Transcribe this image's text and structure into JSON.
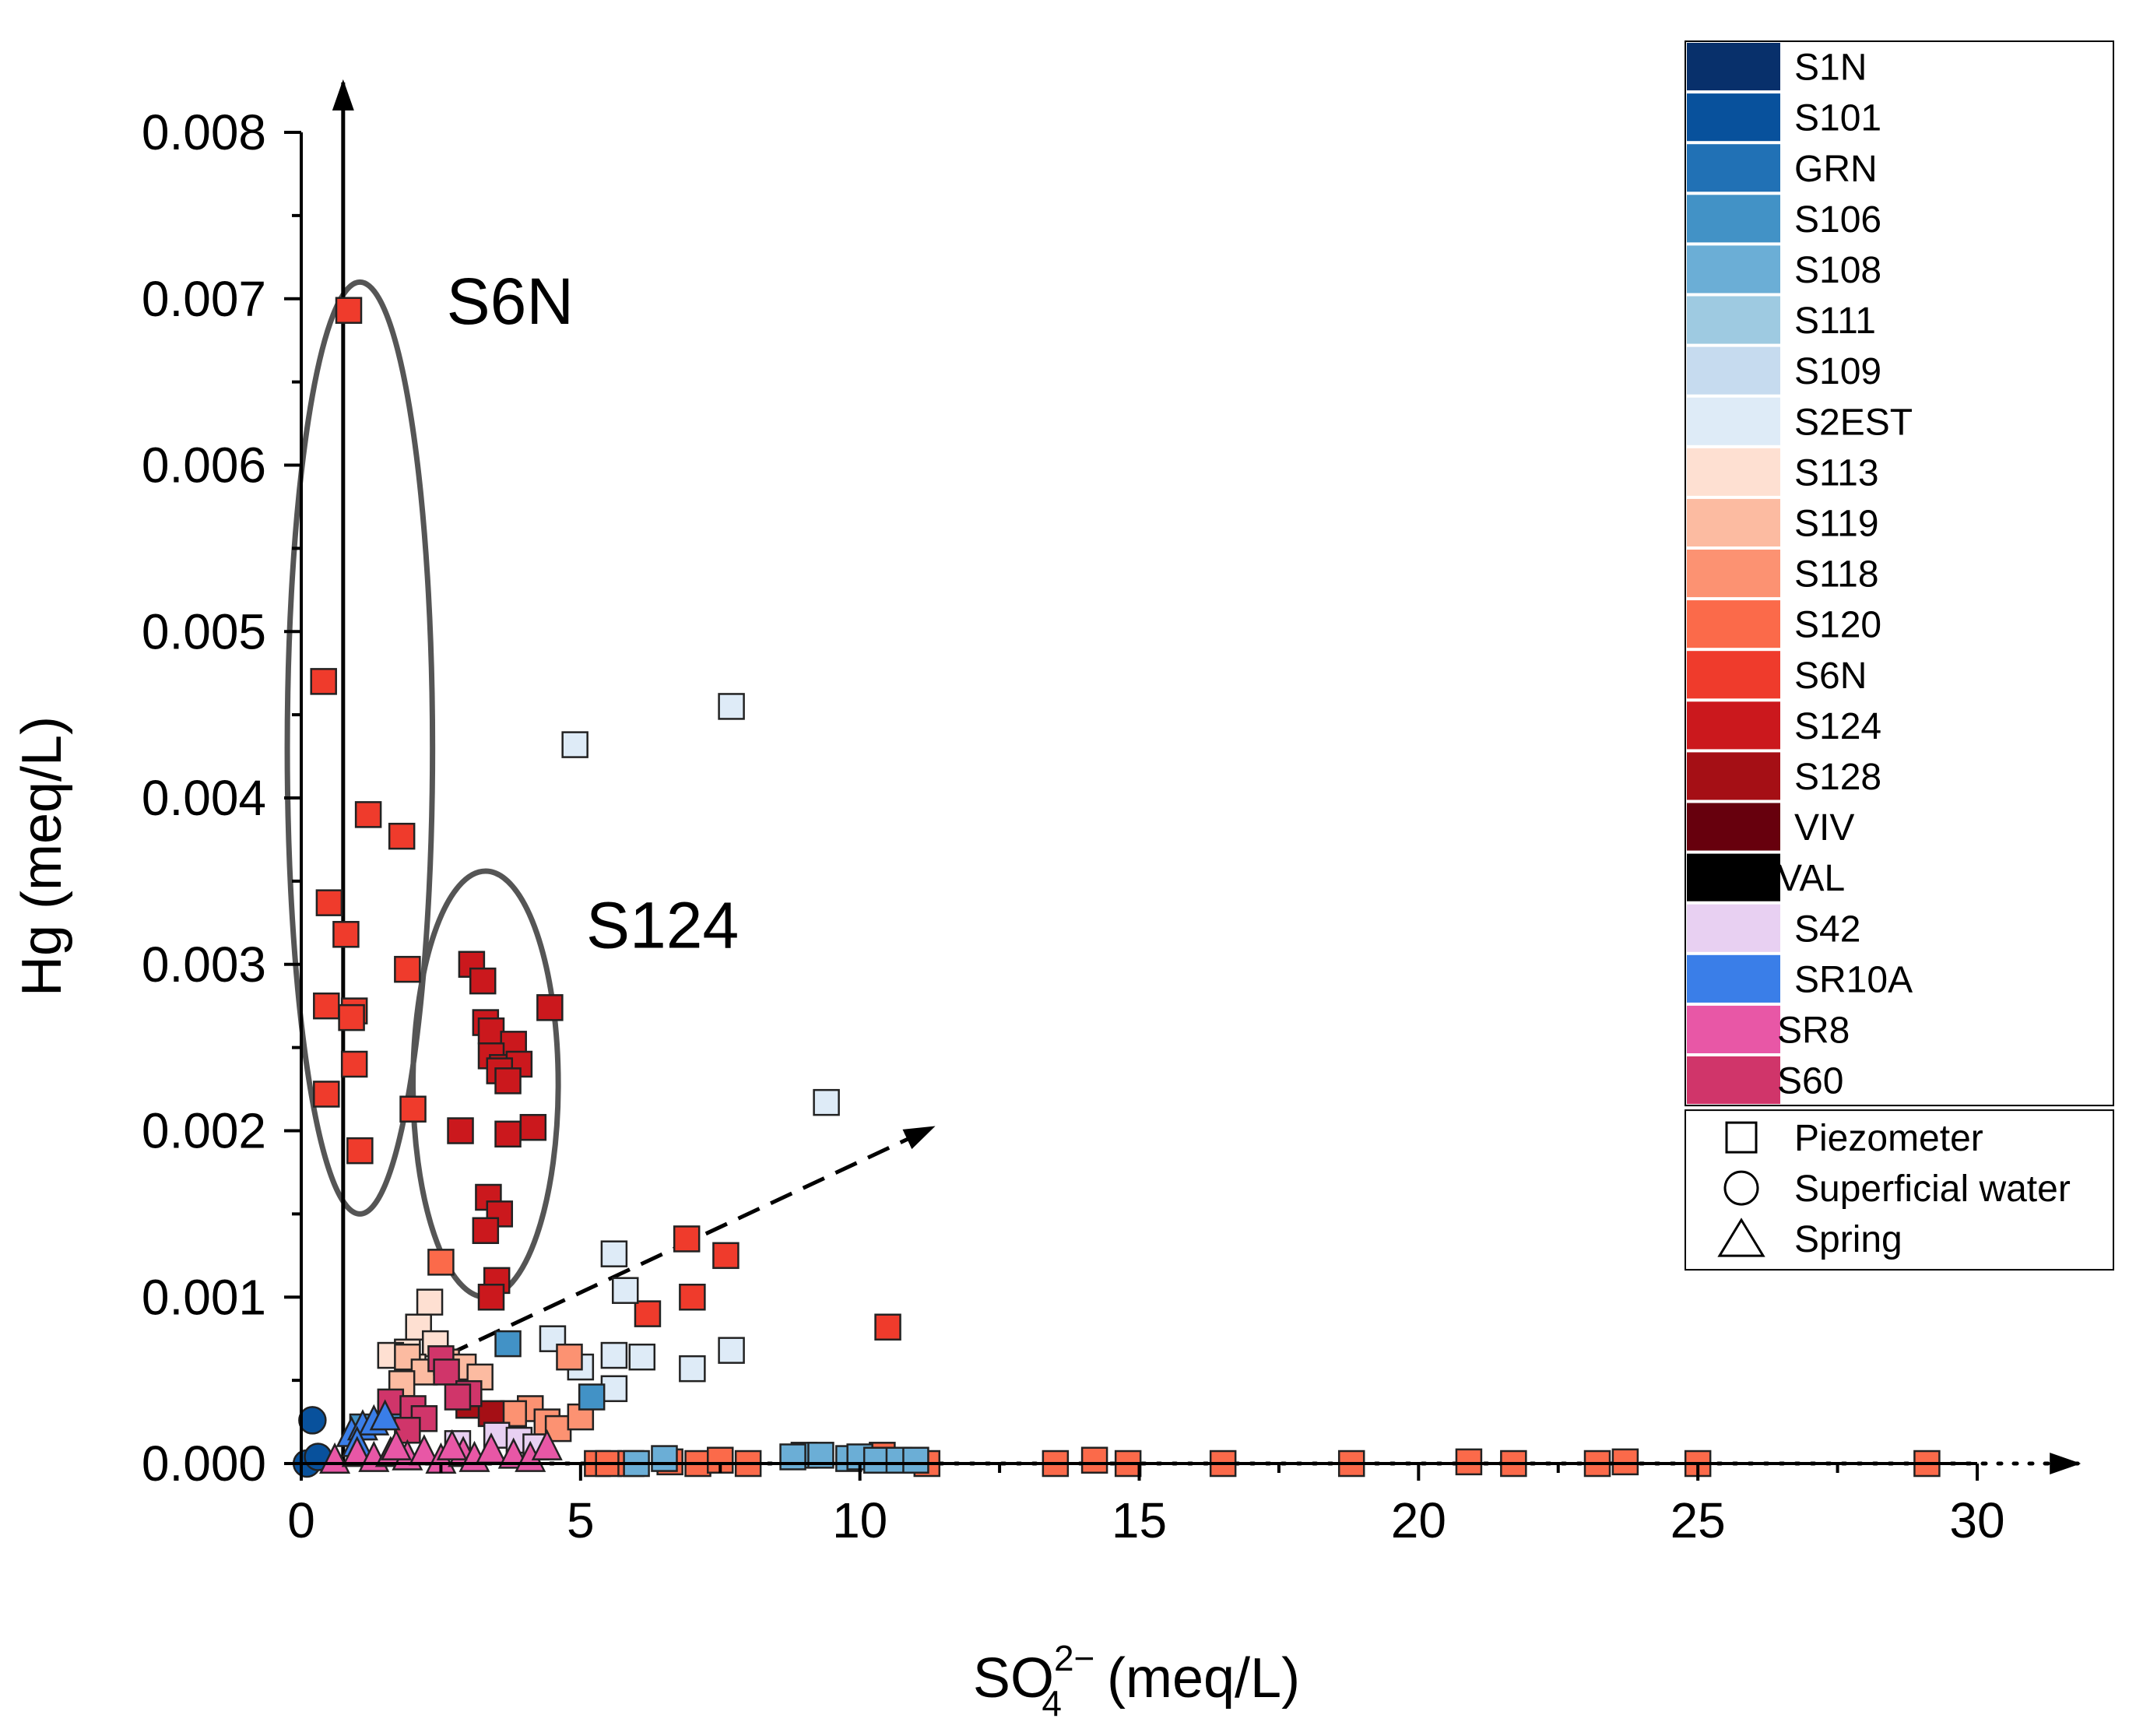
{
  "chart_data": {
    "type": "scatter",
    "title": "",
    "xlabel": {
      "base": "SO",
      "sub": "4",
      "sup": "2−",
      "unit": "(meq/L)"
    },
    "ylabel": "Hg (meq/L)",
    "xlim": [
      0,
      30
    ],
    "ylim": [
      0,
      0.008
    ],
    "x_ticks": [
      0,
      5,
      10,
      15,
      20,
      25,
      30
    ],
    "x_tick_labels": [
      "0",
      "5",
      "10",
      "15",
      "20",
      "25",
      "30"
    ],
    "y_ticks": [
      0,
      0.001,
      0.002,
      0.003,
      0.004,
      0.005,
      0.006,
      0.007,
      0.008
    ],
    "y_tick_labels": [
      "0.000",
      "0.001",
      "0.002",
      "0.003",
      "0.004",
      "0.005",
      "0.006",
      "0.007",
      "0.008"
    ],
    "annotations": [
      {
        "text": "S6N",
        "x": 2.6,
        "y": 0.00685
      },
      {
        "text": "S124",
        "x": 5.1,
        "y": 0.0031
      }
    ],
    "ellipses": [
      {
        "group": "S6N",
        "cx": 1.05,
        "cy": 0.0043,
        "rx": 1.3,
        "ry": 0.0028
      },
      {
        "group": "S124",
        "cx": 3.3,
        "cy": 0.00228,
        "rx": 1.3,
        "ry": 0.00128
      }
    ],
    "arrows": [
      {
        "style": "solid",
        "from": [
          0.75,
          0
        ],
        "to": [
          0.75,
          0.0083
        ]
      },
      {
        "style": "dotted",
        "from": [
          0,
          0
        ],
        "to": [
          31.8,
          0
        ]
      },
      {
        "style": "dashed",
        "from": [
          2.6,
          0.00065
        ],
        "to": [
          11.3,
          0.00202
        ]
      }
    ],
    "legend_sites": [
      {
        "name": "S1N",
        "color": "#08306b"
      },
      {
        "name": "S101",
        "color": "#08519c"
      },
      {
        "name": "GRN",
        "color": "#2171b5"
      },
      {
        "name": "S106",
        "color": "#4292c6"
      },
      {
        "name": "S108",
        "color": "#6baed6"
      },
      {
        "name": "S111",
        "color": "#9ecae1"
      },
      {
        "name": "S109",
        "color": "#c6dbef"
      },
      {
        "name": "S2EST",
        "color": "#deebf7"
      },
      {
        "name": "S113",
        "color": "#fee0d2"
      },
      {
        "name": "S119",
        "color": "#fcbba1"
      },
      {
        "name": "S118",
        "color": "#fc9272"
      },
      {
        "name": "S120",
        "color": "#fb6a4a"
      },
      {
        "name": "S6N",
        "color": "#ef3b2c"
      },
      {
        "name": "S124",
        "color": "#cb181d"
      },
      {
        "name": "S128",
        "color": "#a50f15"
      },
      {
        "name": "VIV",
        "color": "#67000d"
      },
      {
        "name": "VAL",
        "color": "#000000"
      },
      {
        "name": "S42",
        "color": "#e8d0f2"
      },
      {
        "name": "SR10A",
        "color": "#3a7ee8"
      },
      {
        "name": "SR8",
        "color": "#e857a6"
      },
      {
        "name": "S60",
        "color": "#d0356a"
      }
    ],
    "legend_shapes": [
      {
        "name": "Piezometer",
        "shape": "square"
      },
      {
        "name": "Superficial water",
        "shape": "circle"
      },
      {
        "name": "Spring",
        "shape": "triangle"
      }
    ],
    "series": [
      {
        "name": "S6N",
        "marker": "square",
        "color": "#ef3b2c",
        "points": [
          [
            0.85,
            0.00693
          ],
          [
            0.4,
            0.0047
          ],
          [
            1.2,
            0.0039
          ],
          [
            1.8,
            0.00377
          ],
          [
            0.5,
            0.00337
          ],
          [
            0.8,
            0.00318
          ],
          [
            1.9,
            0.00297
          ],
          [
            0.45,
            0.00275
          ],
          [
            0.95,
            0.00272
          ],
          [
            0.9,
            0.00268
          ],
          [
            0.95,
            0.0024
          ],
          [
            0.45,
            0.00222
          ],
          [
            2.0,
            0.00213
          ],
          [
            1.05,
            0.00188
          ],
          [
            6.9,
            0.00135
          ],
          [
            7.6,
            0.00125
          ],
          [
            7.0,
            0.001
          ],
          [
            6.2,
            0.0009
          ],
          [
            10.5,
            0.00082
          ]
        ]
      },
      {
        "name": "S124",
        "marker": "square",
        "color": "#cb181d",
        "points": [
          [
            3.05,
            0.003
          ],
          [
            3.25,
            0.0029
          ],
          [
            4.45,
            0.00274
          ],
          [
            3.3,
            0.00265
          ],
          [
            3.4,
            0.0026
          ],
          [
            3.8,
            0.00252
          ],
          [
            3.4,
            0.00245
          ],
          [
            3.6,
            0.00238
          ],
          [
            3.9,
            0.0024
          ],
          [
            3.55,
            0.00236
          ],
          [
            3.7,
            0.0023
          ],
          [
            2.85,
            0.002
          ],
          [
            3.7,
            0.00198
          ],
          [
            4.15,
            0.00202
          ],
          [
            3.35,
            0.0016
          ],
          [
            3.55,
            0.0015
          ],
          [
            3.3,
            0.0014
          ],
          [
            3.5,
            0.0011
          ],
          [
            3.4,
            0.001
          ]
        ]
      },
      {
        "name": "S120",
        "marker": "square",
        "color": "#fb6a4a",
        "points": [
          [
            2.5,
            0.00121
          ],
          [
            5.3,
            0.0
          ],
          [
            5.5,
            0.0
          ],
          [
            5.9,
            0.0
          ],
          [
            6.6,
            1e-05
          ],
          [
            7.1,
            0.0
          ],
          [
            7.5,
            2e-05
          ],
          [
            8.0,
            0.0
          ],
          [
            10.4,
            5e-05
          ],
          [
            11.2,
            0.0
          ],
          [
            13.5,
            0.0
          ],
          [
            14.2,
            2e-05
          ],
          [
            14.8,
            0.0
          ],
          [
            16.5,
            0.0
          ],
          [
            18.8,
            0.0
          ],
          [
            20.9,
            1e-05
          ],
          [
            21.7,
            0.0
          ],
          [
            23.2,
            0.0
          ],
          [
            23.7,
            1e-05
          ],
          [
            25.0,
            0.0
          ],
          [
            29.1,
            0.0
          ]
        ]
      },
      {
        "name": "S2EST",
        "marker": "square",
        "color": "#deebf7",
        "points": [
          [
            7.7,
            0.00455
          ],
          [
            4.9,
            0.00432
          ],
          [
            9.4,
            0.00217
          ],
          [
            5.6,
            0.00126
          ],
          [
            5.8,
            0.00104
          ],
          [
            4.5,
            0.00075
          ],
          [
            5.0,
            0.00058
          ],
          [
            5.6,
            0.00065
          ],
          [
            6.1,
            0.00064
          ],
          [
            7.0,
            0.00057
          ],
          [
            7.7,
            0.00068
          ],
          [
            5.6,
            0.00045
          ]
        ]
      },
      {
        "name": "S113",
        "marker": "square",
        "color": "#fee0d2",
        "points": [
          [
            2.3,
            0.00097
          ],
          [
            2.1,
            0.00082
          ],
          [
            1.9,
            0.00067
          ],
          [
            1.6,
            0.00065
          ],
          [
            2.4,
            0.00072
          ],
          [
            2.0,
            0.00058
          ]
        ]
      },
      {
        "name": "S119",
        "marker": "square",
        "color": "#fcbba1",
        "points": [
          [
            1.9,
            0.00064
          ],
          [
            2.2,
            0.00055
          ],
          [
            2.6,
            0.00061
          ],
          [
            1.8,
            0.00048
          ],
          [
            2.9,
            0.00058
          ],
          [
            3.2,
            0.00052
          ]
        ]
      },
      {
        "name": "S118",
        "marker": "square",
        "color": "#fc9272",
        "points": [
          [
            4.8,
            0.00064
          ],
          [
            4.1,
            0.00033
          ],
          [
            4.4,
            0.00025
          ],
          [
            4.6,
            0.00021
          ],
          [
            3.8,
            0.0003
          ],
          [
            5.0,
            0.00028
          ]
        ]
      },
      {
        "name": "S106",
        "marker": "square",
        "color": "#4292c6",
        "points": [
          [
            3.7,
            0.00072
          ],
          [
            5.2,
            0.0004
          ],
          [
            1.1,
            0.00022
          ],
          [
            1.6,
            0.0003
          ]
        ]
      },
      {
        "name": "S108",
        "marker": "square",
        "color": "#6baed6",
        "points": [
          [
            9.0,
            5e-05
          ],
          [
            9.3,
            5e-05
          ],
          [
            9.8,
            3e-05
          ],
          [
            10.0,
            4e-05
          ],
          [
            10.3,
            2e-05
          ],
          [
            10.7,
            2e-05
          ],
          [
            11.0,
            2e-05
          ],
          [
            6.5,
            3e-05
          ],
          [
            8.8,
            4e-05
          ],
          [
            6.0,
            0.0
          ]
        ]
      },
      {
        "name": "S128",
        "marker": "square",
        "color": "#a50f15",
        "points": [
          [
            3.0,
            0.00035
          ],
          [
            3.4,
            0.0003
          ]
        ]
      },
      {
        "name": "S60",
        "marker": "square",
        "color": "#d0356a",
        "points": [
          [
            2.5,
            0.00063
          ],
          [
            2.6,
            0.00055
          ],
          [
            3.0,
            0.00042
          ],
          [
            1.6,
            0.00037
          ],
          [
            2.0,
            0.00033
          ],
          [
            2.8,
            0.0004
          ],
          [
            2.2,
            0.00027
          ],
          [
            1.9,
            0.0002
          ]
        ]
      },
      {
        "name": "S42",
        "marker": "square",
        "color": "#e8d0f2",
        "points": [
          [
            3.5,
            0.00017
          ],
          [
            3.9,
            0.00014
          ],
          [
            4.2,
            0.0001
          ],
          [
            2.8,
            0.00012
          ]
        ]
      },
      {
        "name": "S101",
        "marker": "circle",
        "color": "#08519c",
        "points": [
          [
            0.2,
            0.00026
          ],
          [
            0.1,
            0.0
          ],
          [
            0.3,
            4e-05
          ]
        ]
      },
      {
        "name": "SR10A",
        "marker": "triangle",
        "color": "#3a7ee8",
        "points": [
          [
            0.9,
            0.00018
          ],
          [
            1.1,
            0.00022
          ],
          [
            1.3,
            0.00025
          ],
          [
            1.5,
            0.00028
          ],
          [
            1.0,
            0.00012
          ]
        ]
      },
      {
        "name": "SR8",
        "marker": "triangle",
        "color": "#e857a6",
        "points": [
          [
            0.6,
            2e-05
          ],
          [
            1.0,
            6e-05
          ],
          [
            1.3,
            3e-05
          ],
          [
            1.6,
            6e-05
          ],
          [
            1.9,
            4e-05
          ],
          [
            2.2,
            7e-05
          ],
          [
            2.5,
            2e-05
          ],
          [
            2.9,
            6e-05
          ],
          [
            3.1,
            3e-05
          ],
          [
            3.4,
            8e-05
          ],
          [
            3.8,
            5e-05
          ],
          [
            4.1,
            3e-05
          ],
          [
            4.4,
            0.0001
          ],
          [
            2.7,
            0.0001
          ],
          [
            1.7,
            0.0001
          ]
        ]
      }
    ]
  }
}
